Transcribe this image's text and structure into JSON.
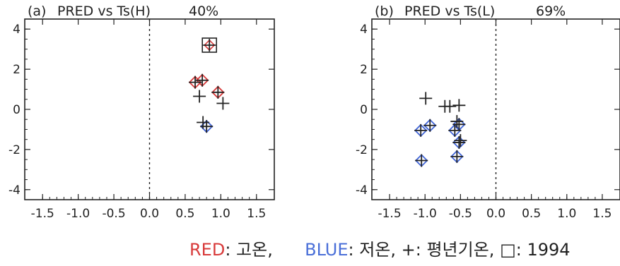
{
  "chart_data": [
    {
      "type": "scatter",
      "label": "(a)",
      "title": "PRED vs Ts(H)",
      "percent": "40%",
      "xlim": [
        -1.75,
        1.75
      ],
      "ylim": [
        -4.5,
        4.5
      ],
      "xticks": [
        -1.5,
        -1.0,
        -0.5,
        0.0,
        0.5,
        1.0,
        1.5
      ],
      "xtick_labels": [
        "-1.5",
        "-1.0",
        "-0.5",
        "0.0",
        "0.5",
        "1.0",
        "1.5"
      ],
      "yticks": [
        -4,
        -2,
        0,
        2,
        4
      ],
      "ytick_labels": [
        "-4",
        "-2",
        "0",
        "2",
        "4"
      ],
      "reference_line_x": 0,
      "red_diamonds": [
        [
          0.64,
          1.35
        ],
        [
          0.74,
          1.45
        ],
        [
          0.96,
          0.85
        ]
      ],
      "blue_diamonds": [
        [
          0.8,
          -0.85
        ]
      ],
      "plus_markers": [
        [
          0.64,
          1.35
        ],
        [
          0.74,
          1.45
        ],
        [
          0.96,
          0.85
        ],
        [
          0.8,
          -0.85
        ],
        [
          0.7,
          0.65
        ],
        [
          1.03,
          0.3
        ],
        [
          0.75,
          -0.65
        ],
        [
          0.84,
          3.2
        ]
      ],
      "square_1994": [
        [
          0.84,
          3.2
        ]
      ]
    },
    {
      "type": "scatter",
      "label": "(b)",
      "title": "PRED vs Ts(L)",
      "percent": "69%",
      "xlim": [
        -1.75,
        1.75
      ],
      "ylim": [
        -4.5,
        4.5
      ],
      "xticks": [
        -1.5,
        -1.0,
        -0.5,
        0.0,
        0.5,
        1.0,
        1.5
      ],
      "xtick_labels": [
        "-1.5",
        "-1.0",
        "-0.5",
        "0.0",
        "0.5",
        "1.0",
        "1.5"
      ],
      "yticks": [
        -4,
        -2,
        0,
        2,
        4
      ],
      "ytick_labels": [
        "-4",
        "-2",
        "0",
        "2",
        "4"
      ],
      "reference_line_x": 0,
      "red_diamonds": [],
      "blue_diamonds": [
        [
          -1.06,
          -1.05
        ],
        [
          -0.93,
          -0.8
        ],
        [
          -0.58,
          -1.05
        ],
        [
          -0.52,
          -0.75
        ],
        [
          -0.52,
          -1.65
        ],
        [
          -0.55,
          -2.35
        ],
        [
          -1.05,
          -2.55
        ]
      ],
      "plus_markers": [
        [
          -1.06,
          -1.05
        ],
        [
          -0.93,
          -0.8
        ],
        [
          -0.58,
          -1.05
        ],
        [
          -0.52,
          -0.75
        ],
        [
          -0.52,
          -1.65
        ],
        [
          -0.55,
          -2.35
        ],
        [
          -1.05,
          -2.55
        ],
        [
          -0.99,
          0.55
        ],
        [
          -0.72,
          0.15
        ],
        [
          -0.65,
          0.15
        ],
        [
          -0.52,
          0.2
        ],
        [
          -0.55,
          -0.6
        ],
        [
          -0.5,
          -1.55
        ]
      ],
      "square_1994": []
    }
  ],
  "legend": {
    "red_key": "RED",
    "red_text": ": 고온,",
    "blue_key": "BLUE",
    "blue_text": ": 저온,",
    "plus_text": "+: 평년기온,",
    "square_text": "□: 1994"
  },
  "colors": {
    "red": "#d83a3a",
    "blue": "#3f64d8",
    "axis": "#222222"
  }
}
